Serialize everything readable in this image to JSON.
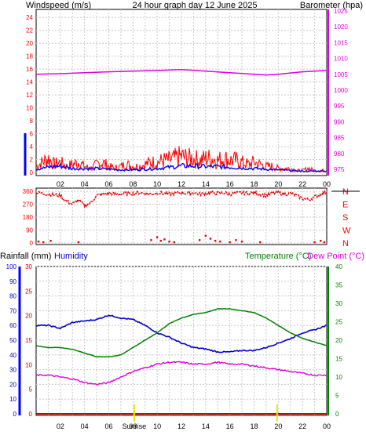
{
  "header": {
    "left": "Windspeed (m/s)",
    "center": "24 hour graph day  12 June 2025",
    "right": "Barometer (hpa)"
  },
  "bottom_header": {
    "rainfall": "Rainfall (mm)",
    "humidity": "Humidity",
    "temperature": "Temperature (°C)",
    "dewpoint": "Dew Point (°C)"
  },
  "sun": {
    "sunrise_label": "Sunrise",
    "sunset_label": ""
  },
  "colors": {
    "wind_gust": "#ff0000",
    "wind_avg": "#0000ff",
    "barometer": "#e000e0",
    "direction": "#e00000",
    "humidity": "#0000cc",
    "temperature": "#008000",
    "dewpoint": "#e000e0",
    "rain": "#cc0000",
    "sun_marker": "#e8e800",
    "grid": "#c8c8c8",
    "title_yellow": "#e8e800"
  },
  "chart_data": [
    {
      "type": "line",
      "title": "24 hour graph day  12 June 2025",
      "x_ticks": [
        "02",
        "04",
        "06",
        "08",
        "10",
        "12",
        "14",
        "16",
        "18",
        "20",
        "22",
        "00"
      ],
      "ylabel": "Windspeed (m/s)",
      "ylim": [
        0,
        25
      ],
      "y_ticks": [
        0,
        2,
        4,
        6,
        8,
        10,
        12,
        14,
        16,
        18,
        20,
        22,
        24
      ],
      "y2label": "Barometer (hpa)",
      "y2lim": [
        974,
        1025
      ],
      "y2_ticks": [
        975,
        980,
        985,
        990,
        995,
        1000,
        1005,
        1010,
        1015,
        1020,
        1025
      ],
      "series": [
        {
          "name": "Windspeed (m/s)",
          "axis": "left",
          "x": [
            0,
            0.5,
            1,
            1.5,
            2,
            2.5,
            3,
            3.5,
            4,
            4.5,
            5,
            5.5,
            6,
            6.5,
            7,
            7.5,
            8,
            8.5,
            9,
            9.5,
            10,
            10.5,
            11,
            11.5,
            12,
            12.5,
            13,
            13.5,
            14,
            14.5,
            15,
            15.5,
            16,
            16.5,
            17,
            17.5,
            18,
            18.5,
            19,
            19.5,
            20,
            20.5,
            21,
            21.5,
            22,
            22.5,
            23,
            23.5,
            24
          ],
          "values": [
            1.5,
            2.5,
            3.5,
            2,
            2.5,
            1.5,
            2,
            2.5,
            1.5,
            1,
            2,
            2.5,
            1.5,
            1,
            1.5,
            2,
            1.5,
            1.5,
            2,
            2.5,
            2.5,
            3,
            3,
            3.5,
            4,
            3.5,
            3.5,
            3,
            3.5,
            3.5,
            3,
            3.5,
            3,
            3,
            2.5,
            2,
            2.5,
            2,
            1.5,
            1.5,
            1,
            1,
            1,
            0.5,
            0.5,
            1,
            0.5,
            0.5,
            0.5
          ]
        },
        {
          "name": "Average wind",
          "axis": "left",
          "x": [
            0,
            1,
            2,
            3,
            4,
            5,
            6,
            7,
            8,
            9,
            10,
            11,
            12,
            13,
            14,
            15,
            16,
            17,
            18,
            19,
            20,
            21,
            22,
            23,
            24
          ],
          "values": [
            0.5,
            0.8,
            1,
            0.6,
            0.6,
            0.6,
            0.5,
            0.4,
            0.4,
            0.5,
            0.6,
            0.8,
            1,
            1,
            0.9,
            0.9,
            0.8,
            0.7,
            0.6,
            0.5,
            0.4,
            0.3,
            0.2,
            0.2,
            0.2
          ]
        },
        {
          "name": "Barometer (hpa)",
          "axis": "right",
          "x": [
            0,
            2,
            4,
            6,
            8,
            10,
            12,
            14,
            16,
            18,
            19,
            20,
            22,
            24
          ],
          "values": [
            1005,
            1005.2,
            1005.5,
            1005.8,
            1006,
            1006.2,
            1006.5,
            1006,
            1005.5,
            1005,
            1004.8,
            1005,
            1005.8,
            1006.2
          ]
        }
      ]
    },
    {
      "type": "scatter",
      "title": "",
      "x_ticks": [
        "02",
        "04",
        "06",
        "08",
        "10",
        "12",
        "14",
        "16",
        "18",
        "20",
        "22",
        "00"
      ],
      "ylabel": "",
      "ylim": [
        0,
        360
      ],
      "y_ticks": [
        0,
        90,
        180,
        270,
        360
      ],
      "y2_ticks": [
        "N",
        "W",
        "S",
        "E",
        "N"
      ],
      "series": [
        {
          "name": "Wind direction",
          "x": [
            0,
            0.5,
            1,
            1.5,
            2,
            2.5,
            3,
            3.5,
            4,
            4.5,
            5,
            5.5,
            6,
            6.5,
            7,
            7.5,
            8,
            8.5,
            9,
            9.5,
            10,
            10.5,
            11,
            11.5,
            12,
            12.5,
            13,
            13.5,
            14,
            14.5,
            15,
            15.5,
            16,
            16.5,
            17,
            17.5,
            18,
            18.5,
            19,
            19.5,
            20,
            20.5,
            21,
            21.5,
            22,
            22.5,
            23,
            23.5,
            24
          ],
          "values": [
            350,
            345,
            340,
            335,
            330,
            290,
            270,
            300,
            260,
            280,
            330,
            340,
            345,
            340,
            340,
            345,
            345,
            350,
            345,
            340,
            350,
            345,
            340,
            345,
            350,
            345,
            350,
            340,
            345,
            350,
            345,
            350,
            340,
            345,
            350,
            345,
            350,
            340,
            330,
            345,
            350,
            340,
            345,
            330,
            310,
            300,
            320,
            340,
            355
          ]
        },
        {
          "name": "Wind direction (north)",
          "x": [
            0.2,
            0.6,
            1.2,
            3.5,
            9.5,
            10,
            10.3,
            10.6,
            11,
            11.4,
            13.5,
            14,
            14.4,
            14.8,
            15.2,
            16,
            16.5,
            17,
            18.5,
            23,
            23.5,
            23.8
          ],
          "values": [
            10,
            5,
            15,
            5,
            20,
            40,
            15,
            25,
            10,
            5,
            20,
            50,
            30,
            15,
            10,
            5,
            20,
            10,
            5,
            5,
            15,
            5
          ]
        }
      ]
    },
    {
      "type": "line",
      "title": "",
      "x_ticks": [
        "02",
        "04",
        "06",
        "08",
        "10",
        "12",
        "14",
        "16",
        "18",
        "20",
        "22",
        "00"
      ],
      "ylabel": "Rainfall (mm)",
      "y_ticks_humidity": [
        0,
        10,
        20,
        30,
        40,
        50,
        60,
        70,
        80,
        90,
        100
      ],
      "y_ticks_rain": [
        0,
        5,
        10,
        15,
        20,
        25,
        30
      ],
      "y2label": "Temperature (°C)",
      "y2lim": [
        0,
        40
      ],
      "y2_ticks": [
        0,
        5,
        10,
        15,
        20,
        25,
        30,
        35,
        40
      ],
      "series": [
        {
          "name": "Humidity",
          "axis": "humidity",
          "x": [
            0,
            1,
            2,
            3,
            4,
            5,
            6,
            7,
            8,
            9,
            10,
            11,
            12,
            13,
            14,
            15,
            16,
            17,
            18,
            19,
            20,
            21,
            22,
            23,
            24
          ],
          "values": [
            60,
            60,
            58,
            62,
            63,
            64,
            67,
            65,
            64,
            60,
            55,
            52,
            48,
            45,
            44,
            42,
            42,
            43,
            43,
            45,
            48,
            51,
            55,
            57,
            60
          ]
        },
        {
          "name": "Temperature (°C)",
          "axis": "right",
          "x": [
            0,
            1,
            2,
            3,
            4,
            5,
            6,
            7,
            8,
            9,
            10,
            11,
            12,
            13,
            14,
            15,
            16,
            17,
            18,
            19,
            20,
            21,
            22,
            23,
            24
          ],
          "values": [
            18.5,
            18,
            18,
            17.5,
            16.5,
            15.5,
            15.5,
            16,
            18,
            20,
            22,
            24.5,
            26,
            27,
            27.5,
            28.5,
            28.5,
            28,
            27.5,
            26,
            24,
            22,
            20.5,
            19.5,
            18.5
          ]
        },
        {
          "name": "Dew Point (°C)",
          "axis": "right",
          "x": [
            0,
            1,
            2,
            3,
            4,
            5,
            6,
            7,
            8,
            9,
            10,
            11,
            12,
            13,
            14,
            15,
            16,
            17,
            18,
            19,
            20,
            21,
            22,
            23,
            24
          ],
          "values": [
            10.5,
            10.5,
            10,
            9.5,
            8.5,
            8,
            8.5,
            10,
            11.5,
            12.5,
            13.5,
            14,
            14,
            13.5,
            13.5,
            14,
            13.5,
            13.5,
            13,
            12.5,
            12,
            11.5,
            11,
            10.5,
            10.5
          ]
        },
        {
          "name": "Rainfall (mm)",
          "axis": "rain",
          "x": [
            0,
            24
          ],
          "values": [
            0,
            0
          ]
        }
      ],
      "markers": {
        "sunrise_hour": 8.1,
        "sunset_hour": 19.9
      }
    }
  ]
}
